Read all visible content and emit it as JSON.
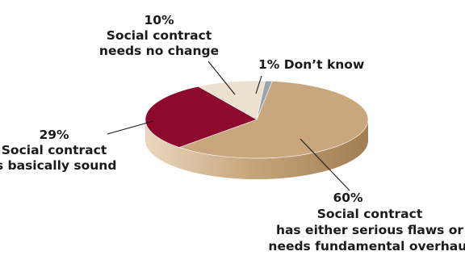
{
  "chart_data": {
    "type": "pie",
    "style": "3d",
    "slices": [
      {
        "label": "Social contract has either serious flaws or needs fundamental overhaul",
        "value": 60,
        "color": "#c9a77e"
      },
      {
        "label": "Social contract is basically sound",
        "value": 29,
        "color": "#8e0a2c"
      },
      {
        "label": "Social contract needs no change",
        "value": 10,
        "color": "#ece1cf"
      },
      {
        "label": "Don’t know",
        "value": 1,
        "color": "#9aa3ae"
      }
    ],
    "annotations": {
      "no_change": {
        "pct": "10%",
        "line1": "Social contract",
        "line2": "needs no change"
      },
      "dont_know": {
        "text": "1% Don’t know"
      },
      "sound": {
        "pct": "29%",
        "line1": "Social contract",
        "line2": "is basically sound"
      },
      "flaws": {
        "pct": "60%",
        "line1": "Social contract",
        "line2": "has either serious flaws or",
        "line3": "needs fundamental overhaul"
      }
    }
  }
}
